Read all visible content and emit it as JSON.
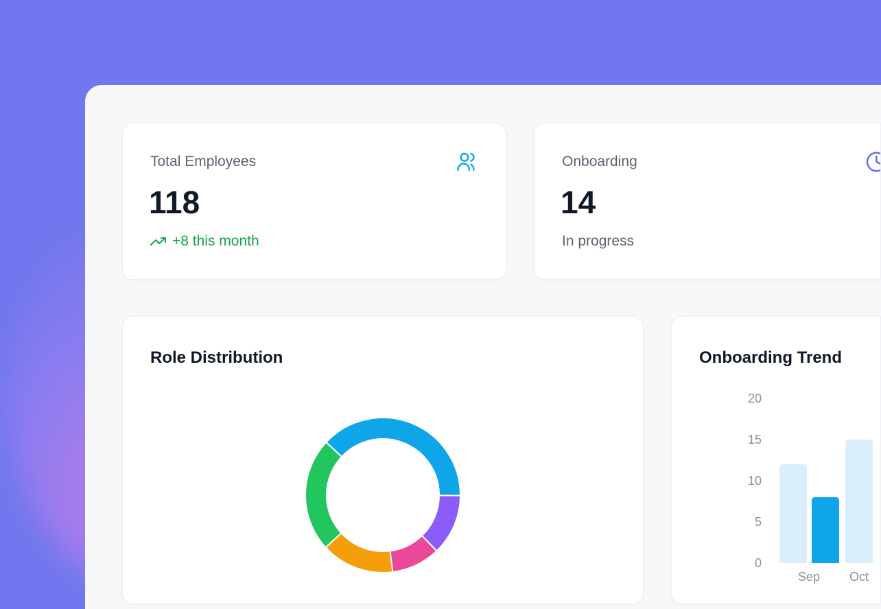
{
  "stats": [
    {
      "label": "Total Employees",
      "value": "118",
      "sub": "+8 this month",
      "icon": "users-icon",
      "icon_color": "#0ea5e9",
      "sub_color": "#16a34a"
    },
    {
      "label": "Onboarding",
      "value": "14",
      "sub": "In progress",
      "icon": "clock-icon",
      "icon_color": "#6366f1"
    }
  ],
  "charts": {
    "role_title": "Role Distribution",
    "trend_title": "Onboarding Trend"
  },
  "chart_data": [
    {
      "type": "pie",
      "title": "Role Distribution",
      "donut": true,
      "slices": [
        {
          "value": 45,
          "color": "#0ea5e9"
        },
        {
          "value": 15,
          "color": "#8b5cf6"
        },
        {
          "value": 12,
          "color": "#ec4899"
        },
        {
          "value": 18,
          "color": "#f59e0b"
        },
        {
          "value": 28,
          "color": "#22c55e"
        }
      ]
    },
    {
      "type": "bar",
      "title": "Onboarding Trend",
      "categories": [
        "Sep",
        "Oct"
      ],
      "ylim": [
        0,
        20
      ],
      "yticks": [
        0,
        5,
        10,
        15,
        20
      ],
      "grid": false,
      "series": [
        {
          "values": [
            12,
            15
          ],
          "color": "#dbeefc"
        },
        {
          "values": [
            8,
            null
          ],
          "color": "#0ea5e9"
        }
      ]
    }
  ]
}
